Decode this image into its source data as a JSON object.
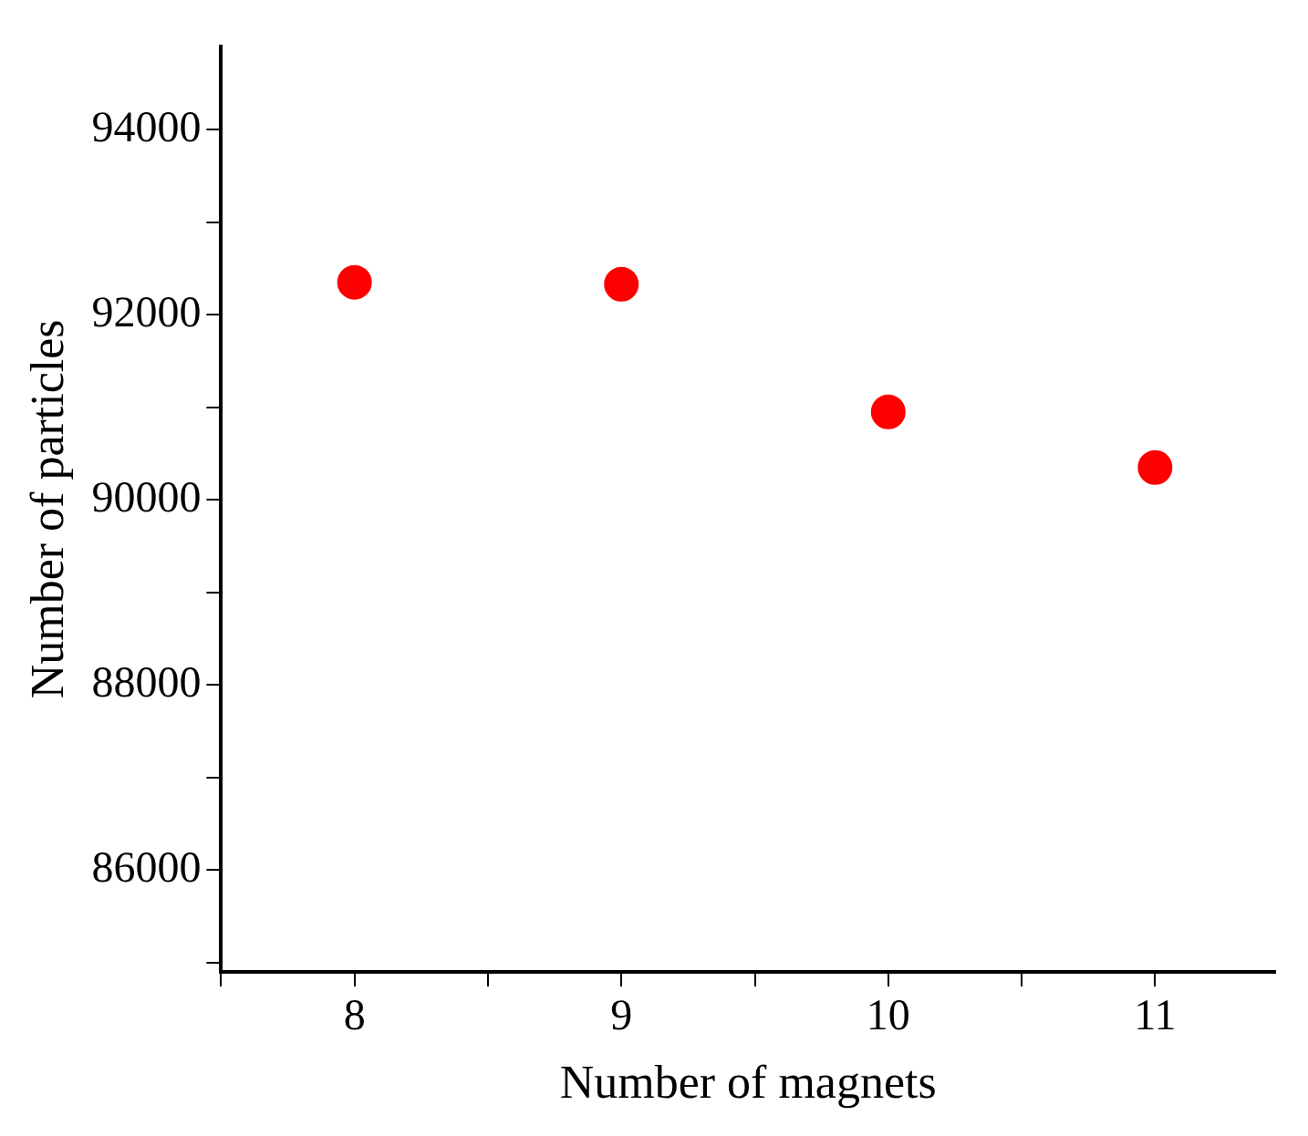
{
  "chart_data": {
    "type": "scatter",
    "xlabel": "Number of magnets",
    "ylabel": "Number of particles",
    "x": [
      8,
      9,
      10,
      11
    ],
    "series": [
      {
        "color": "#ff0000",
        "values": [
          92350,
          92330,
          90950,
          90350
        ]
      }
    ],
    "xlim": [
      7.5,
      11.45
    ],
    "xticks": [
      {
        "value": 7.5,
        "label": null
      },
      8,
      {
        "value": 8.5,
        "label": null
      },
      9,
      {
        "value": 9.5,
        "label": null
      },
      10,
      {
        "value": 10.5,
        "label": null
      },
      11
    ],
    "ylim": [
      84900,
      94900
    ],
    "yticks": [
      {
        "value": 85000,
        "label": null
      },
      86000,
      {
        "value": 87000,
        "label": null
      },
      88000,
      {
        "value": 89000,
        "label": null
      },
      90000,
      {
        "value": 91000,
        "label": null
      },
      92000,
      {
        "value": 93000,
        "label": null
      },
      94000
    ],
    "marker": "circle",
    "grid": false,
    "legend": false
  }
}
